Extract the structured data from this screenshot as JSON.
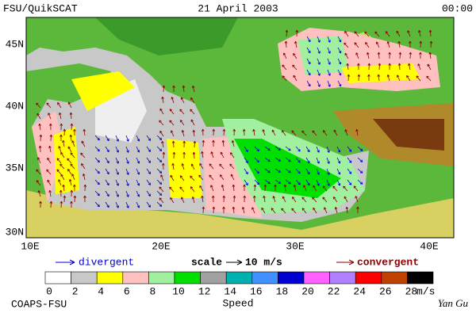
{
  "header": {
    "left": "FSU/QuikSCAT",
    "center": "21 April 2003",
    "right": "00:00"
  },
  "map": {
    "lat_labels": [
      "45N",
      "40N",
      "35N",
      "30N"
    ],
    "lon_labels": [
      "10E",
      "20E",
      "30E",
      "40E"
    ]
  },
  "legend": {
    "divergent": "divergent",
    "scale": "scale",
    "scale_value": "10 m/s",
    "convergent": "convergent"
  },
  "colorbar": {
    "colors": [
      "#ffffff",
      "#c8c8c8",
      "#ffff00",
      "#ffc0c0",
      "#a0f0a0",
      "#00e000",
      "#a0a0a0",
      "#00b0b0",
      "#4090ff",
      "#0000d0",
      "#ff60ff",
      "#b080ff",
      "#ff0000",
      "#c04000",
      "#000000"
    ],
    "labels": [
      "0",
      "2",
      "4",
      "6",
      "8",
      "10",
      "12",
      "14",
      "16",
      "18",
      "20",
      "22",
      "24",
      "26",
      "28"
    ],
    "unit": "m/s",
    "title": "Speed"
  },
  "footer": {
    "left": "COAPS-FSU",
    "right": "Yan Gu"
  }
}
